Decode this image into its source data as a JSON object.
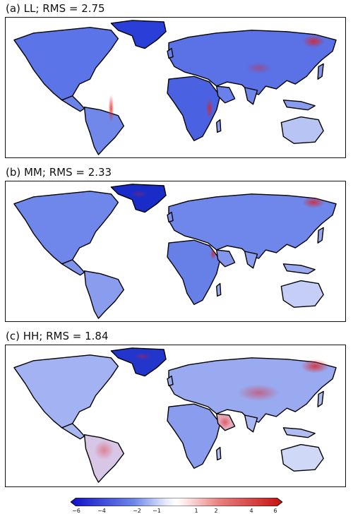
{
  "panels": [
    {
      "title": "(a) LL; RMS = 2.75"
    },
    {
      "title": "(b) MM; RMS = 2.33"
    },
    {
      "title": "(c) HH; RMS = 1.84"
    }
  ],
  "colorbar": {
    "ticks": [
      "−6",
      "−4",
      "−2",
      "−1",
      "1",
      "2",
      "4",
      "6"
    ],
    "colors": {
      "neg_max": "#1010c8",
      "neutral": "#ffffff",
      "pos_max": "#c81010"
    }
  }
}
